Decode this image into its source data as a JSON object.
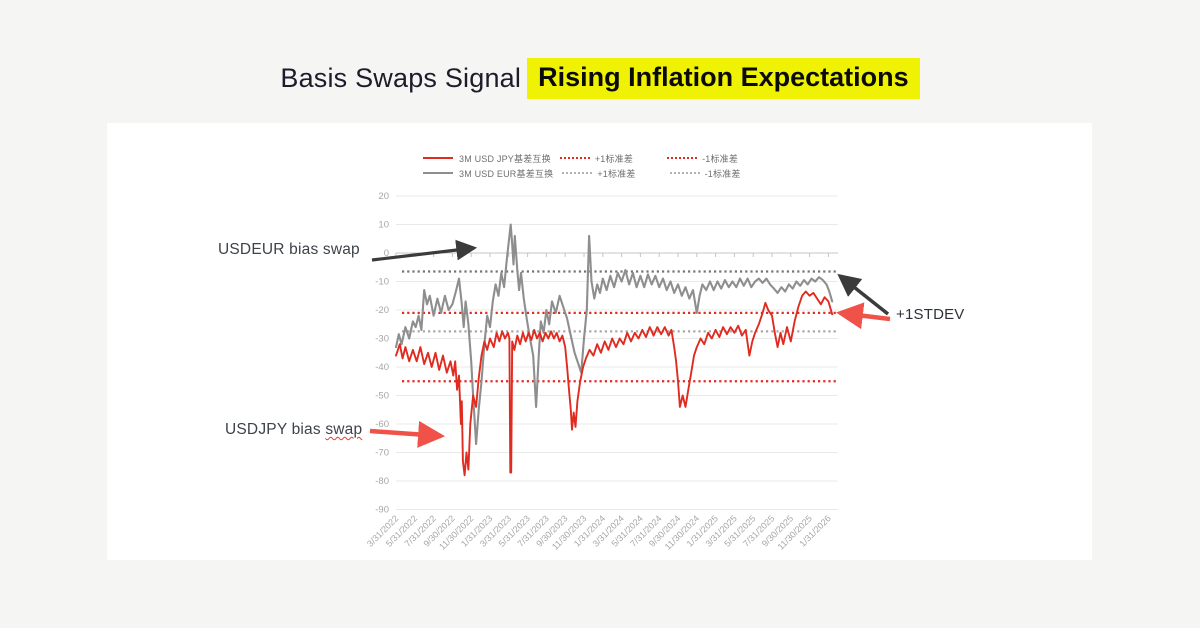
{
  "title": {
    "plain": "Basis Swaps Signal",
    "highlight": "Rising Inflation Expectations",
    "highlight_bg": "#f0f203",
    "text_color": "#1c1c2b"
  },
  "legend": {
    "rows": [
      {
        "series": "3M USD JPY基差互换",
        "plus": "+1标准差",
        "minus": "-1标准差",
        "line_color": "#e02b20",
        "dot_color": "#e02b20"
      },
      {
        "series": "3M USD EUR基差互换",
        "plus": "+1标准差",
        "minus": "-1标准差",
        "line_color": "#8e8e8e",
        "dot_color": "#b2b2b2"
      }
    ]
  },
  "annotations": {
    "usdeur": {
      "label": "USDEUR bias swap",
      "arrow_color": "#3b3b3b"
    },
    "usdjpy": {
      "label_prefix": "USDJPY bias",
      "label_misspelled": "swap",
      "arrow_color": "#f0524a"
    },
    "stdev": {
      "label": "+1STDEV",
      "arrow_colors": [
        "#3b3b3b",
        "#f0524a"
      ]
    }
  },
  "chart_data": {
    "type": "line",
    "title": "",
    "xlabel": "",
    "ylabel": "",
    "x_unit": "category_index (fractional index into categories; 1 unit = 2 months)",
    "categories": [
      "3/31/2022",
      "5/31/2022",
      "7/31/2022",
      "9/30/2022",
      "11/30/2022",
      "1/31/2023",
      "3/31/2023",
      "5/31/2023",
      "7/31/2023",
      "9/30/2023",
      "11/30/2023",
      "1/31/2024",
      "3/31/2024",
      "5/31/2024",
      "7/31/2024",
      "9/30/2024",
      "11/30/2024",
      "1/31/2025",
      "3/31/2025",
      "5/31/2025",
      "7/31/2025",
      "9/30/2025",
      "11/30/2025",
      "1/31/2026"
    ],
    "yticks": [
      20,
      10,
      0,
      -10,
      -20,
      -30,
      -40,
      -50,
      -60,
      -70,
      -80,
      -90
    ],
    "ylim": [
      -90,
      20
    ],
    "grid": true,
    "legend_position": "top",
    "stdev_lines": [
      {
        "label": "+1标准差 (3M USD EUR)",
        "value": -6.5,
        "color": "#757575"
      },
      {
        "label": "-1标准差 (3M USD EUR)",
        "value": -27.5,
        "color": "#a8a8a8"
      },
      {
        "label": "+1标准差 (3M USD JPY)",
        "value": -21,
        "color": "#e02b20"
      },
      {
        "label": "-1标准差 (3M USD JPY)",
        "value": -45,
        "color": "#e02b20"
      }
    ],
    "series": [
      {
        "name": "3M USD EUR基差互换",
        "color": "#8e8e8e",
        "width": 2.1,
        "points": [
          [
            0,
            -33
          ],
          [
            0.15,
            -28.5
          ],
          [
            0.3,
            -32
          ],
          [
            0.5,
            -26
          ],
          [
            0.7,
            -30
          ],
          [
            0.9,
            -24
          ],
          [
            1.05,
            -26
          ],
          [
            1.2,
            -22
          ],
          [
            1.35,
            -27
          ],
          [
            1.5,
            -13
          ],
          [
            1.65,
            -18
          ],
          [
            1.8,
            -15
          ],
          [
            2,
            -22
          ],
          [
            2.2,
            -16
          ],
          [
            2.4,
            -21
          ],
          [
            2.6,
            -15
          ],
          [
            2.8,
            -20
          ],
          [
            3,
            -18
          ],
          [
            3.2,
            -13
          ],
          [
            3.35,
            -9
          ],
          [
            3.5,
            -18
          ],
          [
            3.6,
            -26
          ],
          [
            3.7,
            -17
          ],
          [
            3.85,
            -25
          ],
          [
            4,
            -38
          ],
          [
            4.1,
            -50
          ],
          [
            4.26,
            -67
          ],
          [
            4.4,
            -55
          ],
          [
            4.55,
            -45
          ],
          [
            4.7,
            -32
          ],
          [
            4.85,
            -22
          ],
          [
            5,
            -26
          ],
          [
            5.15,
            -17
          ],
          [
            5.3,
            -11
          ],
          [
            5.45,
            -15
          ],
          [
            5.6,
            -7
          ],
          [
            5.75,
            -12
          ],
          [
            5.9,
            -2
          ],
          [
            6,
            4
          ],
          [
            6.1,
            10
          ],
          [
            6.18,
            3
          ],
          [
            6.25,
            -4
          ],
          [
            6.32,
            6
          ],
          [
            6.45,
            -6
          ],
          [
            6.55,
            -13
          ],
          [
            6.65,
            -7
          ],
          [
            6.8,
            -16
          ],
          [
            6.95,
            -23
          ],
          [
            7.1,
            -29
          ],
          [
            7.3,
            -36
          ],
          [
            7.45,
            -54
          ],
          [
            7.6,
            -35
          ],
          [
            7.7,
            -24
          ],
          [
            7.85,
            -28
          ],
          [
            8,
            -20
          ],
          [
            8.15,
            -25
          ],
          [
            8.3,
            -17
          ],
          [
            8.5,
            -21
          ],
          [
            8.7,
            -15
          ],
          [
            8.9,
            -19
          ],
          [
            9.1,
            -23
          ],
          [
            9.3,
            -29
          ],
          [
            9.5,
            -35
          ],
          [
            9.7,
            -39
          ],
          [
            9.85,
            -42
          ],
          [
            10,
            -30
          ],
          [
            10.15,
            -20
          ],
          [
            10.27,
            6
          ],
          [
            10.4,
            -10
          ],
          [
            10.55,
            -16
          ],
          [
            10.7,
            -11
          ],
          [
            10.85,
            -14
          ],
          [
            11,
            -9
          ],
          [
            11.2,
            -13
          ],
          [
            11.4,
            -8
          ],
          [
            11.6,
            -12
          ],
          [
            11.8,
            -7
          ],
          [
            12,
            -10
          ],
          [
            12.2,
            -6
          ],
          [
            12.4,
            -11
          ],
          [
            12.6,
            -7
          ],
          [
            12.8,
            -12
          ],
          [
            13,
            -8
          ],
          [
            13.2,
            -12
          ],
          [
            13.4,
            -7.5
          ],
          [
            13.6,
            -11
          ],
          [
            13.8,
            -8
          ],
          [
            14,
            -12
          ],
          [
            14.2,
            -9
          ],
          [
            14.4,
            -13
          ],
          [
            14.6,
            -10
          ],
          [
            14.8,
            -14
          ],
          [
            15,
            -11
          ],
          [
            15.2,
            -15
          ],
          [
            15.4,
            -12
          ],
          [
            15.6,
            -16
          ],
          [
            15.8,
            -13
          ],
          [
            16,
            -21
          ],
          [
            16.15,
            -15
          ],
          [
            16.3,
            -11
          ],
          [
            16.5,
            -13
          ],
          [
            16.7,
            -10
          ],
          [
            16.9,
            -13
          ],
          [
            17.1,
            -10
          ],
          [
            17.3,
            -12.5
          ],
          [
            17.5,
            -9.5
          ],
          [
            17.7,
            -12
          ],
          [
            17.9,
            -10
          ],
          [
            18.1,
            -12
          ],
          [
            18.3,
            -9
          ],
          [
            18.5,
            -11.5
          ],
          [
            18.7,
            -9
          ],
          [
            18.9,
            -12
          ],
          [
            19.1,
            -10
          ],
          [
            19.3,
            -9
          ],
          [
            19.5,
            -10.5
          ],
          [
            19.7,
            -9
          ],
          [
            19.9,
            -11
          ],
          [
            20.1,
            -12.5
          ],
          [
            20.3,
            -14
          ],
          [
            20.5,
            -12
          ],
          [
            20.7,
            -13.5
          ],
          [
            20.9,
            -11
          ],
          [
            21.1,
            -12.5
          ],
          [
            21.3,
            -10
          ],
          [
            21.5,
            -11.5
          ],
          [
            21.7,
            -9.5
          ],
          [
            21.9,
            -11
          ],
          [
            22.1,
            -9
          ],
          [
            22.3,
            -10
          ],
          [
            22.5,
            -8.5
          ],
          [
            22.7,
            -9.5
          ],
          [
            22.9,
            -11
          ],
          [
            23.05,
            -13.5
          ],
          [
            23.2,
            -17
          ]
        ]
      },
      {
        "name": "3M USD JPY基差互换",
        "color": "#e02b20",
        "width": 1.9,
        "points": [
          [
            0,
            -36
          ],
          [
            0.2,
            -32
          ],
          [
            0.35,
            -37
          ],
          [
            0.5,
            -33
          ],
          [
            0.7,
            -38
          ],
          [
            0.9,
            -34
          ],
          [
            1.1,
            -38
          ],
          [
            1.3,
            -33
          ],
          [
            1.5,
            -39
          ],
          [
            1.7,
            -35
          ],
          [
            1.9,
            -40
          ],
          [
            2.1,
            -35
          ],
          [
            2.3,
            -41
          ],
          [
            2.5,
            -36
          ],
          [
            2.7,
            -42
          ],
          [
            2.9,
            -38
          ],
          [
            3.05,
            -43
          ],
          [
            3.15,
            -38
          ],
          [
            3.25,
            -48
          ],
          [
            3.35,
            -43
          ],
          [
            3.45,
            -60
          ],
          [
            3.5,
            -52
          ],
          [
            3.56,
            -73
          ],
          [
            3.65,
            -78
          ],
          [
            3.75,
            -70
          ],
          [
            3.85,
            -76
          ],
          [
            3.95,
            -60
          ],
          [
            4.1,
            -50
          ],
          [
            4.26,
            -54
          ],
          [
            4.4,
            -44
          ],
          [
            4.55,
            -36
          ],
          [
            4.7,
            -31
          ],
          [
            4.85,
            -34
          ],
          [
            5,
            -30
          ],
          [
            5.2,
            -33
          ],
          [
            5.35,
            -28
          ],
          [
            5.5,
            -31
          ],
          [
            5.65,
            -27.5
          ],
          [
            5.8,
            -30
          ],
          [
            5.95,
            -28
          ],
          [
            6.03,
            -30
          ],
          [
            6.08,
            -77
          ],
          [
            6.13,
            -77
          ],
          [
            6.18,
            -31
          ],
          [
            6.3,
            -34
          ],
          [
            6.45,
            -29
          ],
          [
            6.6,
            -32
          ],
          [
            6.75,
            -28
          ],
          [
            6.9,
            -31
          ],
          [
            7.05,
            -28
          ],
          [
            7.2,
            -30.5
          ],
          [
            7.35,
            -27
          ],
          [
            7.5,
            -30
          ],
          [
            7.65,
            -28
          ],
          [
            7.8,
            -31
          ],
          [
            7.95,
            -28
          ],
          [
            8.1,
            -30
          ],
          [
            8.25,
            -27.5
          ],
          [
            8.4,
            -30
          ],
          [
            8.55,
            -28
          ],
          [
            8.7,
            -31
          ],
          [
            8.85,
            -29
          ],
          [
            9,
            -33
          ],
          [
            9.1,
            -40
          ],
          [
            9.2,
            -48
          ],
          [
            9.3,
            -55
          ],
          [
            9.36,
            -62
          ],
          [
            9.45,
            -56
          ],
          [
            9.55,
            -61
          ],
          [
            9.65,
            -52
          ],
          [
            9.8,
            -45
          ],
          [
            9.95,
            -40
          ],
          [
            10.1,
            -37
          ],
          [
            10.3,
            -34
          ],
          [
            10.5,
            -36
          ],
          [
            10.7,
            -32
          ],
          [
            10.9,
            -35
          ],
          [
            11.1,
            -31
          ],
          [
            11.3,
            -34
          ],
          [
            11.5,
            -30
          ],
          [
            11.7,
            -33
          ],
          [
            11.9,
            -30
          ],
          [
            12.1,
            -32
          ],
          [
            12.3,
            -28
          ],
          [
            12.5,
            -31
          ],
          [
            12.7,
            -28
          ],
          [
            12.9,
            -30
          ],
          [
            13.1,
            -27
          ],
          [
            13.3,
            -29.5
          ],
          [
            13.5,
            -26
          ],
          [
            13.7,
            -29
          ],
          [
            13.9,
            -26
          ],
          [
            14.1,
            -28.5
          ],
          [
            14.3,
            -26
          ],
          [
            14.5,
            -29
          ],
          [
            14.65,
            -27
          ],
          [
            14.8,
            -33
          ],
          [
            14.9,
            -38
          ],
          [
            15,
            -45
          ],
          [
            15.1,
            -54
          ],
          [
            15.25,
            -50
          ],
          [
            15.4,
            -54
          ],
          [
            15.55,
            -48
          ],
          [
            15.7,
            -42
          ],
          [
            15.85,
            -36
          ],
          [
            16,
            -33
          ],
          [
            16.2,
            -30
          ],
          [
            16.4,
            -32
          ],
          [
            16.6,
            -28
          ],
          [
            16.8,
            -30
          ],
          [
            17,
            -27
          ],
          [
            17.2,
            -29.5
          ],
          [
            17.4,
            -26
          ],
          [
            17.6,
            -28.5
          ],
          [
            17.8,
            -26
          ],
          [
            18,
            -28
          ],
          [
            18.2,
            -25.5
          ],
          [
            18.4,
            -29
          ],
          [
            18.6,
            -27
          ],
          [
            18.8,
            -36
          ],
          [
            18.95,
            -31
          ],
          [
            19.1,
            -28
          ],
          [
            19.3,
            -25
          ],
          [
            19.5,
            -21
          ],
          [
            19.65,
            -17.5
          ],
          [
            19.8,
            -20
          ],
          [
            20,
            -22
          ],
          [
            20.15,
            -28
          ],
          [
            20.3,
            -33
          ],
          [
            20.45,
            -28
          ],
          [
            20.6,
            -32
          ],
          [
            20.8,
            -26
          ],
          [
            21,
            -31
          ],
          [
            21.2,
            -24
          ],
          [
            21.4,
            -19
          ],
          [
            21.6,
            -15
          ],
          [
            21.8,
            -13.5
          ],
          [
            22,
            -15
          ],
          [
            22.2,
            -14
          ],
          [
            22.4,
            -16
          ],
          [
            22.6,
            -18
          ],
          [
            22.8,
            -15.5
          ],
          [
            23,
            -17
          ],
          [
            23.2,
            -21.5
          ]
        ]
      }
    ]
  }
}
